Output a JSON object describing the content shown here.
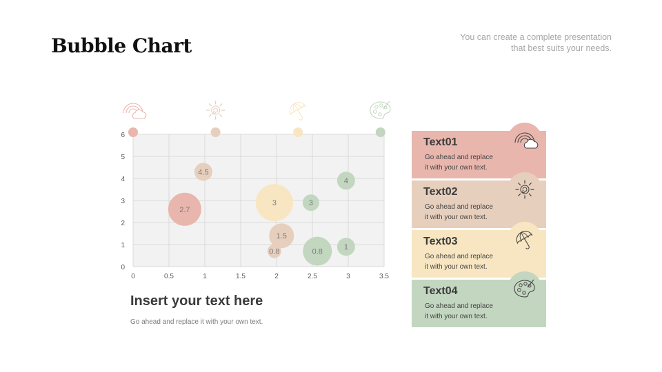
{
  "header": {
    "title": "Bubble Chart",
    "subtitle_line1": "You can create a complete presentation",
    "subtitle_line2": "that best suits your needs."
  },
  "colors": {
    "red": "#e8b6ad",
    "peach": "#e7cfbd",
    "yellow": "#f7e6c1",
    "green": "#c2d6c0",
    "plot_bg": "#f2f2f2",
    "grid": "#d9d9d9"
  },
  "chart_data": {
    "type": "scatter",
    "subtype": "bubble",
    "xlim": [
      0,
      3.5
    ],
    "ylim": [
      0,
      6
    ],
    "x_ticks": [
      "0",
      "0.5",
      "1",
      "1.5",
      "2",
      "2.5",
      "3",
      "3.5"
    ],
    "y_ticks": [
      "0",
      "1",
      "2",
      "3",
      "4",
      "5",
      "6"
    ],
    "grid": true,
    "title": "",
    "xlabel": "",
    "ylabel": "",
    "header_icons": [
      {
        "x": 0,
        "icon": "rainbow-cloud-icon",
        "color": "#e8b6ad"
      },
      {
        "x": 1.15,
        "icon": "sun-icon",
        "color": "#e7cfbd"
      },
      {
        "x": 2.3,
        "icon": "umbrella-icon",
        "color": "#f7e6c1"
      },
      {
        "x": 3.45,
        "icon": "palette-icon",
        "color": "#c2d6c0"
      }
    ],
    "points": [
      {
        "x": 0.72,
        "y": 2.6,
        "size": 2.7,
        "label": "2.7",
        "color": "#e8b6ad"
      },
      {
        "x": 0.98,
        "y": 4.3,
        "size": 4.5,
        "label": "4.5",
        "color": "#e7cfbd"
      },
      {
        "x": 1.97,
        "y": 2.9,
        "size": 3,
        "label": "3",
        "color": "#f7e6c1"
      },
      {
        "x": 2.48,
        "y": 2.9,
        "size": 3,
        "label": "3",
        "color": "#c2d6c0"
      },
      {
        "x": 2.97,
        "y": 3.9,
        "size": 4,
        "label": "4",
        "color": "#c2d6c0"
      },
      {
        "x": 2.07,
        "y": 1.4,
        "size": 1.5,
        "label": "1.5",
        "color": "#e7cfbd"
      },
      {
        "x": 1.97,
        "y": 0.7,
        "size": 0.8,
        "label": "0.8",
        "color": "#e7cfbd"
      },
      {
        "x": 2.57,
        "y": 0.7,
        "size": 0.8,
        "label": "0.8",
        "color": "#c2d6c0"
      },
      {
        "x": 2.97,
        "y": 0.9,
        "size": 1,
        "label": "1",
        "color": "#c2d6c0"
      }
    ]
  },
  "caption": {
    "title": "Insert your text here",
    "body": "Go ahead and replace it with your own text."
  },
  "cards": [
    {
      "title": "Text01",
      "line1": "Go ahead and replace",
      "line2": "it with your own text.",
      "icon": "rainbow-cloud-icon"
    },
    {
      "title": "Text02",
      "line1": "Go ahead and replace",
      "line2": "it with your own text.",
      "icon": "sun-icon"
    },
    {
      "title": "Text03",
      "line1": "Go ahead and replace",
      "line2": "it with your own text.",
      "icon": "umbrella-icon"
    },
    {
      "title": "Text04",
      "line1": "Go ahead and replace",
      "line2": "it with your own text.",
      "icon": "palette-icon"
    }
  ]
}
